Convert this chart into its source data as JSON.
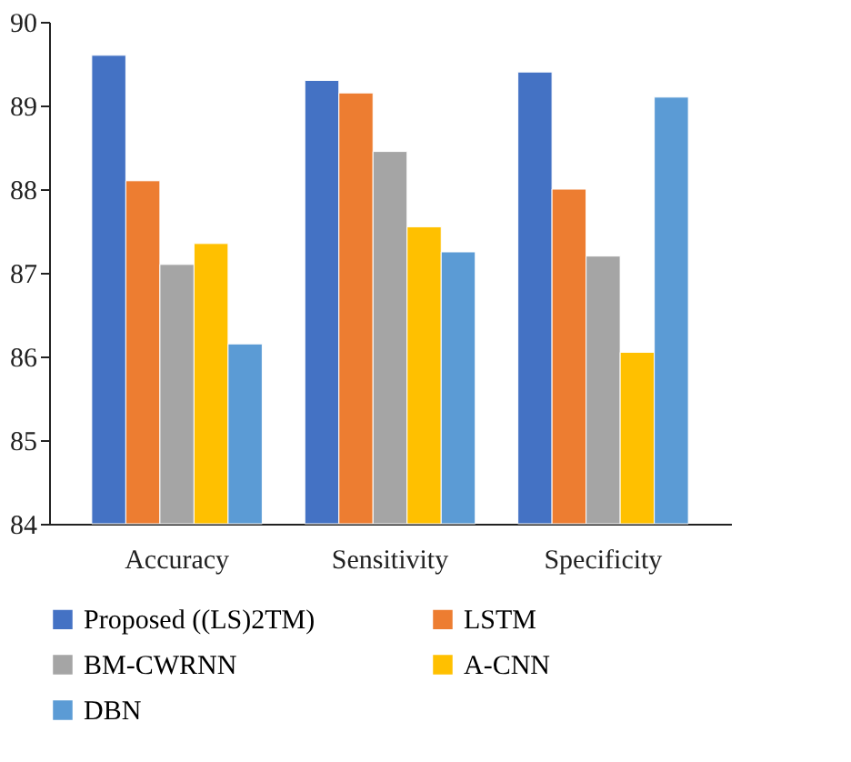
{
  "chart_data": {
    "type": "bar",
    "categories": [
      "Accuracy",
      "Sensitivity",
      "Specificity"
    ],
    "series": [
      {
        "name": "Proposed ((LS)2TM)",
        "color": "#4472c4",
        "values": [
          89.6,
          89.3,
          89.4
        ]
      },
      {
        "name": "LSTM",
        "color": "#ed7d31",
        "values": [
          88.1,
          89.15,
          88.0
        ]
      },
      {
        "name": "BM-CWRNN",
        "color": "#a5a5a5",
        "values": [
          87.1,
          88.45,
          87.2
        ]
      },
      {
        "name": "A-CNN",
        "color": "#ffc000",
        "values": [
          87.35,
          87.55,
          86.05
        ]
      },
      {
        "name": "DBN",
        "color": "#5b9bd5",
        "values": [
          86.15,
          87.25,
          89.1
        ]
      }
    ],
    "ylim": [
      84,
      90
    ],
    "yticks": [
      84,
      85,
      86,
      87,
      88,
      89,
      90
    ],
    "grid": false,
    "legend": "bottom"
  }
}
